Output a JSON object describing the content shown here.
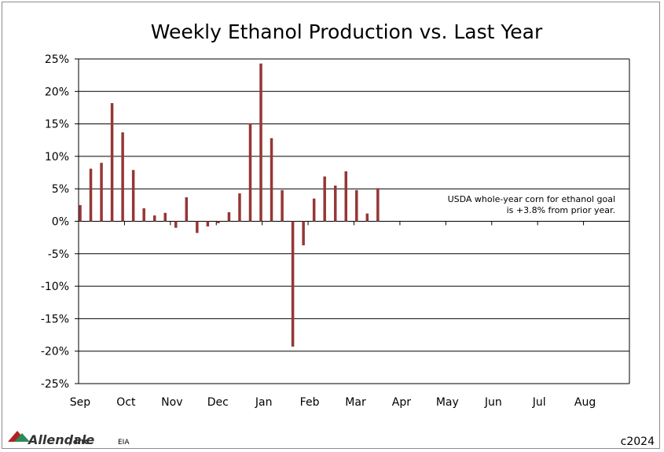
{
  "chart_data": {
    "type": "bar",
    "title": "Weekly Ethanol Production vs. Last Year",
    "xlabel": "",
    "ylabel": "",
    "ylim": [
      -25,
      25
    ],
    "yticks": [
      -25,
      -20,
      -15,
      -10,
      -5,
      0,
      5,
      10,
      15,
      20,
      25
    ],
    "ytick_labels": [
      "-25%",
      "-20%",
      "-15%",
      "-10%",
      "-5%",
      "0%",
      "5%",
      "10%",
      "15%",
      "20%",
      "25%"
    ],
    "month_labels": [
      "Sep",
      "Oct",
      "Nov",
      "Dec",
      "Jan",
      "Feb",
      "Mar",
      "Apr",
      "May",
      "Jun",
      "Jul",
      "Aug"
    ],
    "grid": true,
    "bar_color": "#953735",
    "values": [
      2.5,
      8.1,
      9.0,
      18.2,
      13.7,
      7.9,
      2.0,
      0.9,
      1.3,
      -1.0,
      3.7,
      -1.8,
      -0.8,
      -0.3,
      1.4,
      4.3,
      15.1,
      24.3,
      12.8,
      4.8,
      -19.3,
      -3.7,
      3.5,
      6.9,
      5.5,
      7.7,
      4.8,
      1.2,
      5.1
    ],
    "annotation": [
      "USDA whole-year corn for ethanol goal",
      "is +3.8% from prior year."
    ]
  },
  "footer": {
    "logo_text": "Allendale",
    "logo_suffix": ", Inc.",
    "source": "EIA",
    "copyright": "c2024"
  },
  "colors": {
    "bar": "#953735",
    "grid": "#000000",
    "logo_red": "#b22222",
    "logo_green": "#2e8b57"
  }
}
